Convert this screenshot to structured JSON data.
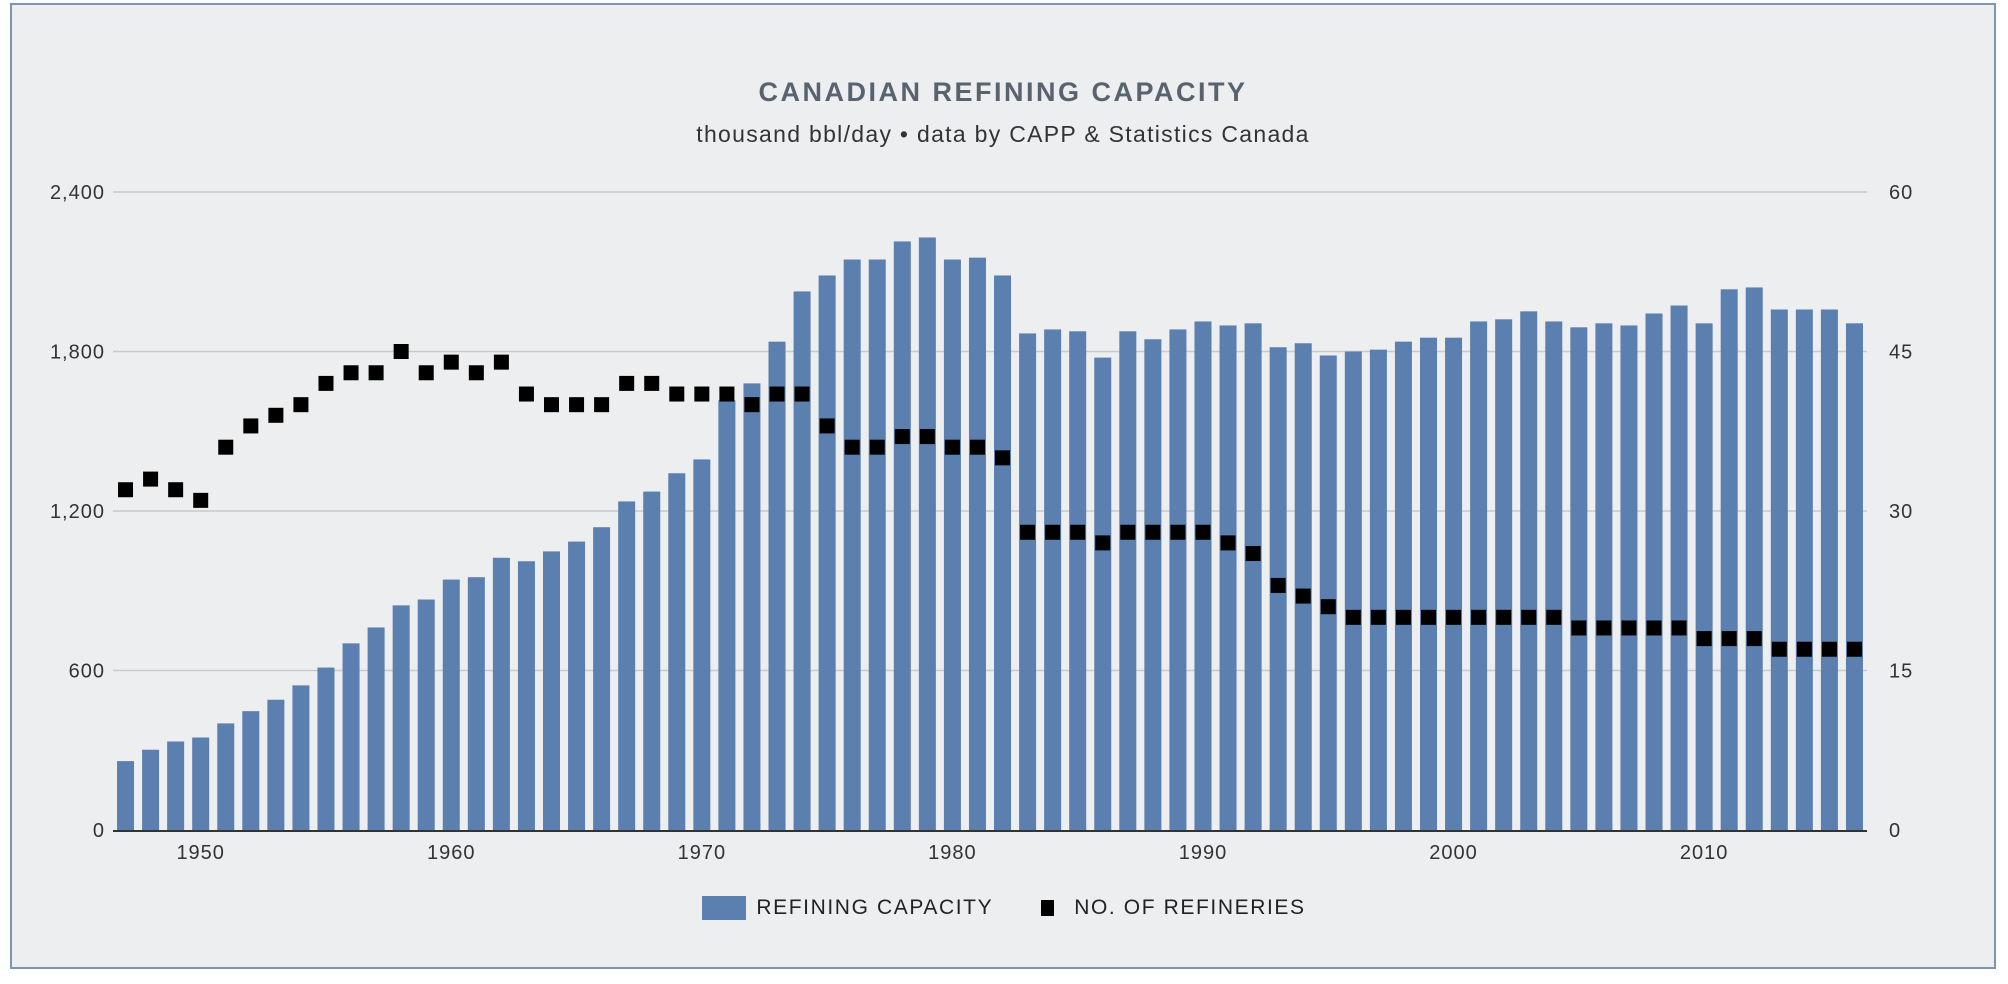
{
  "chart_data": {
    "type": "bar",
    "title": "CANADIAN REFINING CAPACITY",
    "subtitle": "thousand bbl/day • data by CAPP & Statistics Canada",
    "x": [
      1947,
      1948,
      1949,
      1950,
      1951,
      1952,
      1953,
      1954,
      1955,
      1956,
      1957,
      1958,
      1959,
      1960,
      1961,
      1962,
      1963,
      1964,
      1965,
      1966,
      1967,
      1968,
      1969,
      1970,
      1971,
      1972,
      1973,
      1974,
      1975,
      1976,
      1977,
      1978,
      1979,
      1980,
      1981,
      1982,
      1983,
      1984,
      1985,
      1986,
      1987,
      1988,
      1989,
      1990,
      1991,
      1992,
      1993,
      1994,
      1995,
      1996,
      1997,
      1998,
      1999,
      2000,
      2001,
      2002,
      2003,
      2004,
      2005,
      2006,
      2007,
      2008,
      2009,
      2010,
      2011,
      2012,
      2013,
      2014,
      2015,
      2016
    ],
    "x_ticks": [
      "1950",
      "1960",
      "1970",
      "1980",
      "1990",
      "2000",
      "2010"
    ],
    "y_left": {
      "range": [
        0,
        2400
      ],
      "ticks": [
        "0",
        "600",
        "1,200",
        "1,800",
        "2,400"
      ]
    },
    "y_right": {
      "range": [
        0,
        60
      ],
      "ticks": [
        "0",
        "15",
        "30",
        "45",
        "60"
      ]
    },
    "grid": true,
    "legend_position": "bottom",
    "series": [
      {
        "name": "REFINING CAPACITY",
        "type": "bar",
        "axis": "left",
        "color": "#5b7fae",
        "values": [
          259,
          302,
          333,
          348,
          401,
          447,
          490,
          544,
          611,
          702,
          762,
          845,
          867,
          942,
          951,
          1024,
          1011,
          1048,
          1085,
          1139,
          1236,
          1273,
          1342,
          1394,
          1616,
          1680,
          1837,
          2026,
          2086,
          2146,
          2146,
          2214,
          2229,
          2146,
          2153,
          2086,
          1868,
          1883,
          1876,
          1777,
          1876,
          1846,
          1883,
          1913,
          1898,
          1906,
          1816,
          1831,
          1785,
          1800,
          1807,
          1837,
          1852,
          1852,
          1913,
          1921,
          1951,
          1913,
          1891,
          1906,
          1898,
          1943,
          1973,
          1906,
          2034,
          2041,
          1958,
          1958,
          1958,
          1906
        ]
      },
      {
        "name": "NO. OF REFINERIES",
        "type": "scatter",
        "axis": "right",
        "color": "#000000",
        "values": [
          32,
          33,
          32,
          31,
          36,
          38,
          39,
          40,
          42,
          43,
          43,
          45,
          43,
          44,
          43,
          44,
          41,
          40,
          40,
          40,
          42,
          42,
          41,
          41,
          41,
          40,
          41,
          41,
          38,
          36,
          36,
          37,
          37,
          36,
          36,
          35,
          28,
          28,
          28,
          27,
          28,
          28,
          28,
          28,
          27,
          26,
          23,
          22,
          21,
          20,
          20,
          20,
          20,
          20,
          20,
          20,
          20,
          20,
          19,
          19,
          19,
          19,
          19,
          18,
          18,
          18,
          17,
          17,
          17,
          17
        ]
      }
    ]
  }
}
